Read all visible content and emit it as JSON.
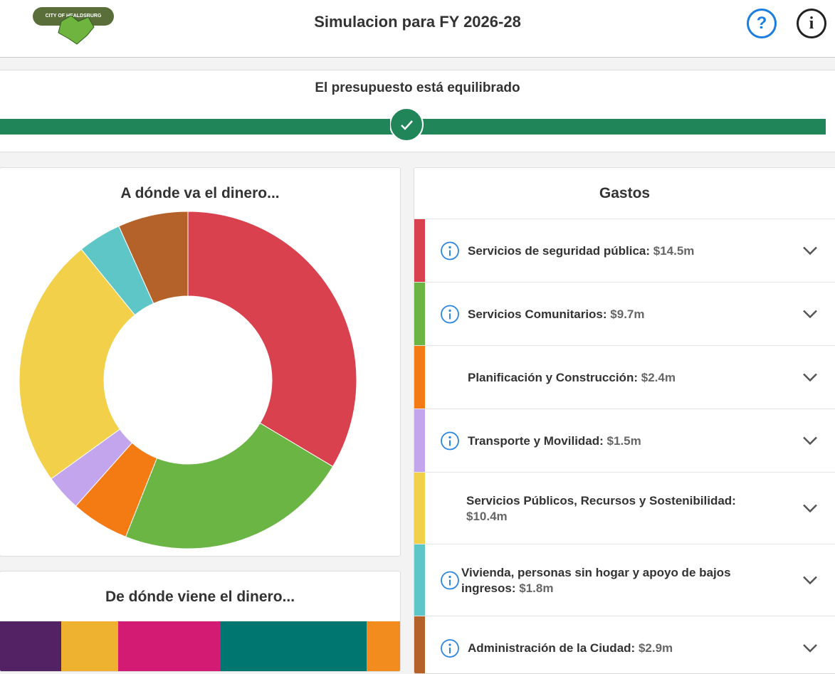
{
  "header": {
    "title": "Simulacion para FY 2026-28",
    "logo_text": "CITY OF HEALDSBURG",
    "help": "?",
    "info": "i"
  },
  "status": {
    "text": "El presupuesto está equilibrado"
  },
  "chart_data": [
    {
      "type": "donut",
      "title": "A dónde va el dinero...",
      "list_title": "Gastos",
      "categories": [
        "Servicios de seguridad pública:",
        "Servicios Comunitarios:",
        "Planificación y Construcción:",
        "Transporte y Movilidad:",
        "Servicios Públicos, Recursos y Sostenibilidad:",
        "Vivienda, personas sin hogar y apoyo de bajos ingresos:",
        "Administración de la Ciudad:"
      ],
      "values": [
        14.5,
        9.7,
        2.4,
        1.5,
        10.4,
        1.8,
        2.9
      ],
      "value_labels": [
        "$14.5m",
        "$9.7m",
        "$2.4m",
        "$1.5m",
        "$10.4m",
        "$1.8m",
        "$2.9m"
      ],
      "colors": [
        "#d9414e",
        "#6bb545",
        "#f47a14",
        "#c2a5ed",
        "#f2d04a",
        "#5fc6c8",
        "#b5622a"
      ],
      "info_icons": [
        true,
        true,
        false,
        true,
        false,
        true,
        true
      ]
    },
    {
      "type": "stacked-bar",
      "title": "De dónde viene el dinero...",
      "series": [
        {
          "color": "#522264",
          "values": [
            86
          ]
        },
        {
          "color": "#efb130",
          "values": [
            80
          ]
        },
        {
          "color": "#d41b74",
          "values": [
            144
          ]
        },
        {
          "color": "#007670",
          "values": [
            205
          ]
        },
        {
          "color": "#f28c1f",
          "values": [
            47
          ]
        }
      ]
    }
  ]
}
